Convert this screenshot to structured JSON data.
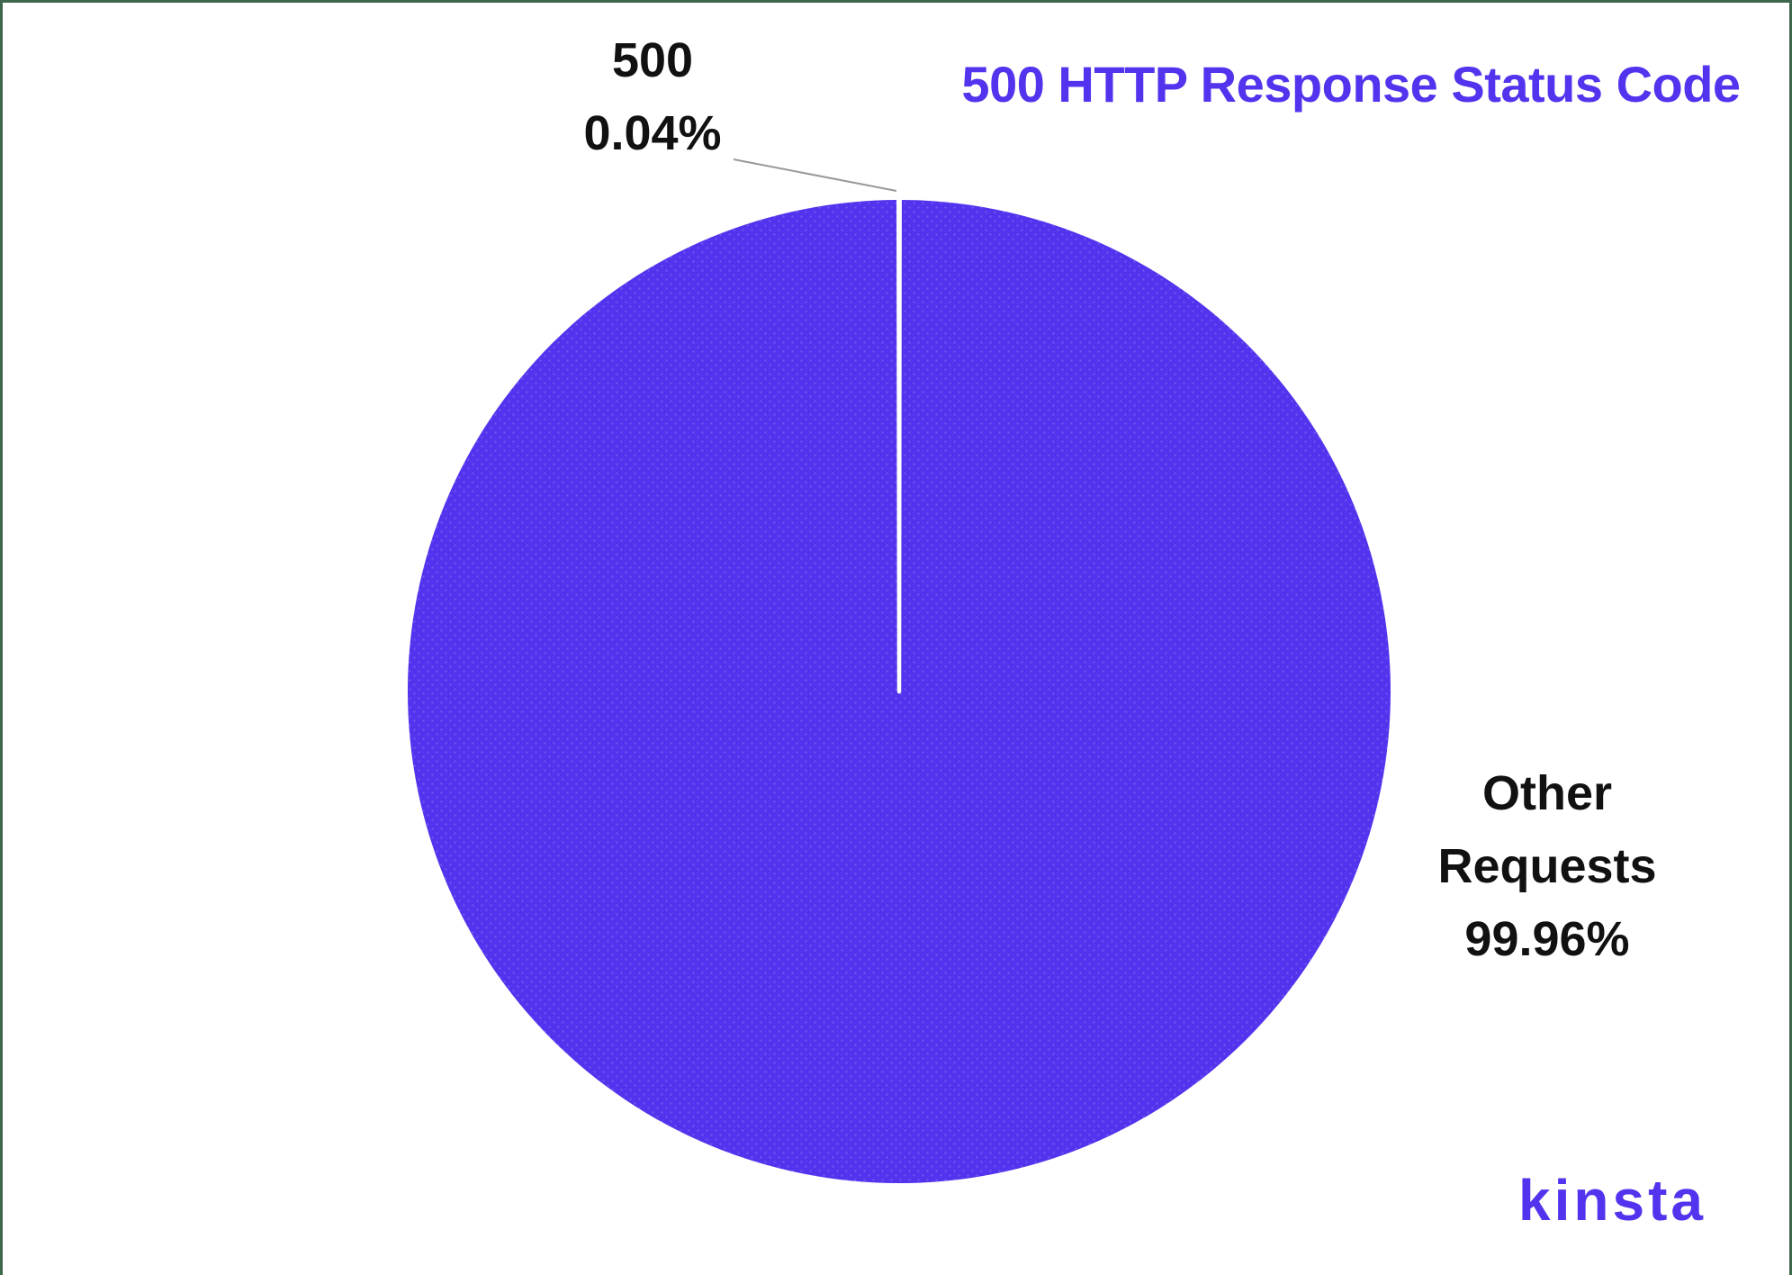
{
  "page": {
    "background": "#ffffff",
    "frame_color": "#3e664d"
  },
  "chart_data": {
    "type": "pie",
    "title": "500 HTTP Response Status Code",
    "legend_position": "none",
    "slices": [
      {
        "label": "500",
        "value": 0.04,
        "display_percent": "0.04%",
        "color": "#ffffff"
      },
      {
        "label": "Other Requests",
        "value": 99.96,
        "display_percent": "99.96%",
        "color": "#5333ed"
      }
    ],
    "callouts": {
      "small": {
        "lines": [
          "500",
          "0.04%"
        ],
        "has_leader_line": true
      },
      "large": {
        "lines": [
          "Other",
          "Requests",
          "99.96%"
        ],
        "has_leader_line": false
      }
    }
  },
  "branding": {
    "logo_text": "kinsta",
    "logo_color": "#5333ed"
  },
  "colors": {
    "accent_purple": "#5333ed",
    "pie_fill": "#5333ed",
    "pie_dot_texture": "rgba(255,255,255,0.18)",
    "leader_line": "#999999",
    "text_black": "#111111",
    "frame_green": "#3e664d"
  }
}
